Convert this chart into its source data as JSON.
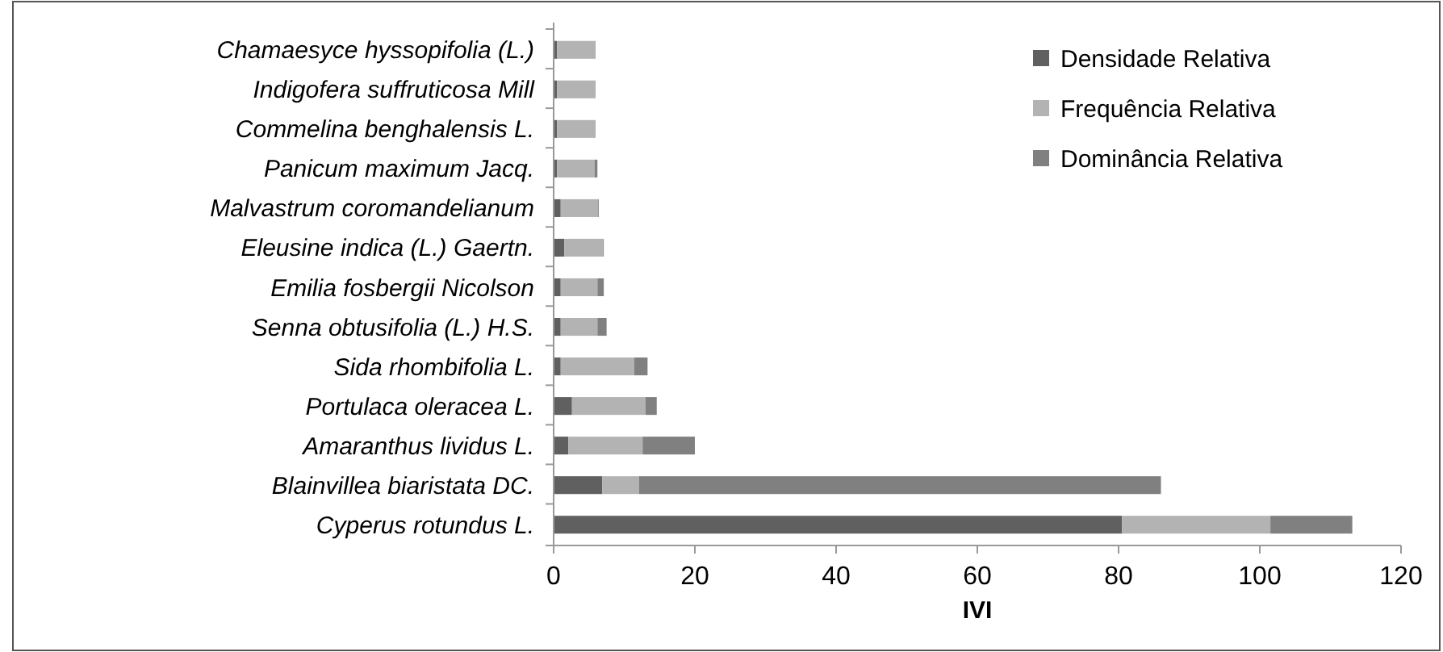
{
  "chart_data": {
    "type": "bar",
    "orientation": "horizontal",
    "stacked": true,
    "xlabel": "IVI",
    "categories": [
      "Chamaesyce hyssopifolia (L.)",
      "Indigofera suffruticosa Mill",
      "Commelina benghalensis L.",
      "Panicum maximum Jacq.",
      "Malvastrum coromandelianum",
      "Eleusine indica (L.) Gaertn.",
      "Emilia fosbergii Nicolson",
      "Senna  obtusifolia (L.) H.S.",
      "Sida rhombifolia L.",
      "Portulaca oleracea L.",
      "Amaranthus lividus L.",
      "Blainvillea biaristata DC.",
      "Cyperus rotundus L."
    ],
    "series": [
      {
        "name": "Densidade Relativa",
        "color": "#606060",
        "values": [
          0.5,
          0.5,
          0.5,
          0.5,
          1.0,
          1.5,
          1.0,
          1.0,
          1.0,
          2.6,
          2.1,
          6.9,
          80.5
        ]
      },
      {
        "name": "Frequência Relativa",
        "color": "#b3b3b3",
        "values": [
          5.3,
          5.3,
          5.3,
          5.3,
          5.3,
          5.5,
          5.2,
          5.2,
          10.4,
          10.4,
          10.5,
          5.2,
          21.0
        ]
      },
      {
        "name": "Dominância Relativa",
        "color": "#808080",
        "values": [
          0.1,
          0.1,
          0.1,
          0.4,
          0.1,
          0.1,
          0.9,
          1.3,
          1.9,
          1.6,
          7.4,
          73.9,
          11.6
        ]
      }
    ],
    "xlim": [
      0,
      120
    ],
    "xticks": [
      0,
      20,
      40,
      60,
      80,
      100,
      120
    ],
    "grid": false,
    "legend": "top right"
  }
}
